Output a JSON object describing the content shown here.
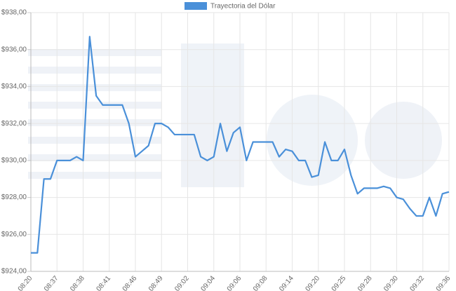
{
  "chart_data": {
    "type": "line",
    "legend": "top",
    "grid": true,
    "categories": [
      "08:20",
      null,
      null,
      null,
      "08:37",
      null,
      null,
      null,
      "08:38",
      null,
      null,
      null,
      "08:41",
      null,
      null,
      null,
      "08:46",
      null,
      null,
      null,
      "08:49",
      null,
      null,
      null,
      "09:02",
      null,
      null,
      null,
      "09:04",
      null,
      null,
      null,
      "09:06",
      null,
      null,
      null,
      "09:08",
      null,
      null,
      null,
      "09:14",
      null,
      null,
      null,
      "09:20",
      null,
      null,
      null,
      "09:25",
      null,
      null,
      null,
      "09:28",
      null,
      null,
      null,
      "09:30",
      null,
      null,
      null,
      "09:32",
      null,
      null,
      null,
      "09:36"
    ],
    "series": [
      {
        "name": "Trayectoria del Dólar",
        "color": "#4a90d9",
        "values": [
          925.0,
          925.0,
          929.0,
          929.0,
          930.0,
          930.0,
          930.0,
          930.2,
          930.0,
          936.7,
          933.5,
          933.0,
          933.0,
          933.0,
          933.0,
          932.0,
          930.2,
          930.5,
          930.8,
          932.0,
          932.0,
          931.8,
          931.4,
          931.4,
          931.4,
          931.4,
          930.2,
          930.0,
          930.2,
          932.0,
          930.5,
          931.5,
          931.8,
          930.0,
          931.0,
          931.0,
          931.0,
          931.0,
          930.2,
          930.6,
          930.5,
          930.0,
          930.0,
          929.1,
          929.2,
          931.0,
          930.0,
          930.0,
          930.6,
          929.2,
          928.2,
          928.5,
          928.5,
          928.5,
          928.6,
          928.5,
          928.0,
          927.9,
          927.4,
          927.0,
          927.0,
          928.0,
          927.0,
          928.2,
          928.3
        ]
      }
    ],
    "ylim": [
      924,
      938
    ],
    "yticks": [
      {
        "value": 924,
        "label": "$924,00"
      },
      {
        "value": 926,
        "label": "$926,00"
      },
      {
        "value": 928,
        "label": "$928,00"
      },
      {
        "value": 930,
        "label": "$930,00"
      },
      {
        "value": 932,
        "label": "$932,00"
      },
      {
        "value": 934,
        "label": "$934,00"
      },
      {
        "value": 936,
        "label": "$936,00"
      },
      {
        "value": 938,
        "label": "$938,00"
      }
    ]
  }
}
